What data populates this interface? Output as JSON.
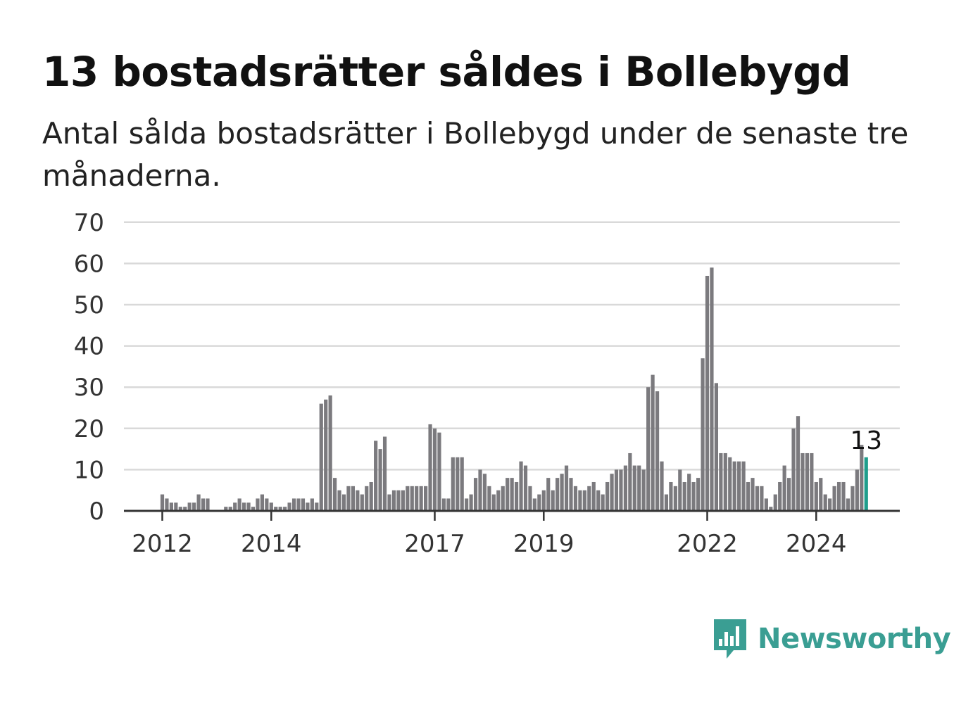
{
  "header": {
    "title": "13 bostadsrätter såldes i Bollebygd",
    "subtitle": "Antal sålda bostadsrätter i Bollebygd under de senaste tre månaderna."
  },
  "brand": {
    "name": "Newsworthy",
    "icon": "newsworthy-logo-icon",
    "color": "#3a9e93"
  },
  "chart_data": {
    "type": "bar",
    "ylim": [
      0,
      70
    ],
    "yticks": [
      0,
      10,
      20,
      30,
      40,
      50,
      60,
      70
    ],
    "grid": true,
    "x_start": "2012-01",
    "x_unit": "month",
    "xtick_labels": [
      "2012",
      "2014",
      "2017",
      "2019",
      "2022",
      "2024"
    ],
    "xtick_months": [
      "2012-01",
      "2014-01",
      "2017-01",
      "2019-01",
      "2022-01",
      "2024-01"
    ],
    "bar_color": "#7b7a7e",
    "highlight_color": "#1f9e8c",
    "last_value_label": "13",
    "values": [
      4,
      3,
      2,
      2,
      1,
      1,
      2,
      2,
      4,
      3,
      3,
      0,
      0,
      0,
      1,
      1,
      2,
      3,
      2,
      2,
      1,
      3,
      4,
      3,
      2,
      1,
      1,
      1,
      2,
      3,
      3,
      3,
      2,
      3,
      2,
      26,
      27,
      28,
      8,
      5,
      4,
      6,
      6,
      5,
      4,
      6,
      7,
      17,
      15,
      18,
      4,
      5,
      5,
      5,
      6,
      6,
      6,
      6,
      6,
      21,
      20,
      19,
      3,
      3,
      13,
      13,
      13,
      3,
      4,
      8,
      10,
      9,
      6,
      4,
      5,
      6,
      8,
      8,
      7,
      12,
      11,
      6,
      3,
      4,
      5,
      8,
      5,
      8,
      9,
      11,
      8,
      6,
      5,
      5,
      6,
      7,
      5,
      4,
      7,
      9,
      10,
      10,
      11,
      14,
      11,
      11,
      10,
      30,
      33,
      29,
      12,
      4,
      7,
      6,
      10,
      7,
      9,
      7,
      8,
      37,
      57,
      59,
      31,
      14,
      14,
      13,
      12,
      12,
      12,
      7,
      8,
      6,
      6,
      3,
      1,
      4,
      7,
      11,
      8,
      20,
      23,
      14,
      14,
      14,
      7,
      8,
      4,
      3,
      6,
      7,
      7,
      3,
      6,
      10,
      16,
      13
    ]
  }
}
